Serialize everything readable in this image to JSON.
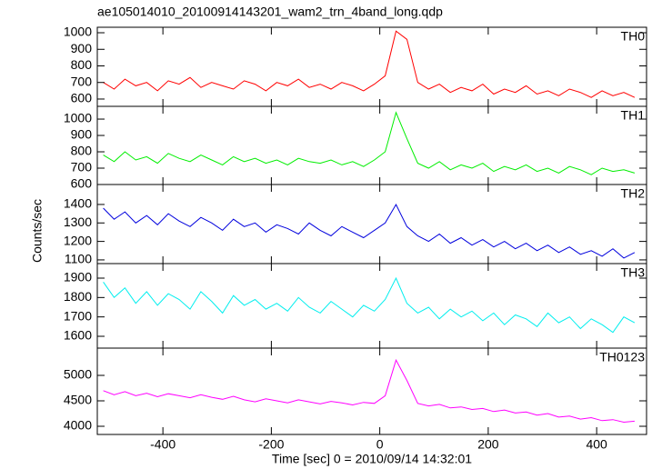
{
  "chart_data": {
    "type": "line",
    "title": "ae105014010_20100914143201_wam2_trn_4band_long.qdp",
    "x_label": "Time [sec] 0 = 2010/09/14 14:32:01",
    "y_label": "Counts/sec",
    "xlim": [
      -521,
      492
    ],
    "xticks": [
      -400,
      -200,
      0,
      200,
      400
    ],
    "x": [
      -510,
      -490,
      -470,
      -450,
      -430,
      -410,
      -390,
      -370,
      -350,
      -330,
      -310,
      -290,
      -270,
      -250,
      -230,
      -210,
      -190,
      -170,
      -150,
      -130,
      -110,
      -90,
      -70,
      -50,
      -30,
      -10,
      10,
      30,
      50,
      70,
      90,
      110,
      130,
      150,
      170,
      190,
      210,
      230,
      250,
      270,
      290,
      310,
      330,
      350,
      370,
      390,
      410,
      430,
      450,
      470
    ],
    "panels": [
      {
        "name": "TH0",
        "color": "#ff0000",
        "ylim": [
          556,
          1033
        ],
        "yticks": [
          600,
          700,
          800,
          900,
          1000
        ],
        "values": [
          700,
          660,
          720,
          680,
          700,
          650,
          710,
          690,
          730,
          670,
          700,
          680,
          660,
          710,
          690,
          650,
          700,
          680,
          720,
          670,
          690,
          660,
          700,
          680,
          650,
          690,
          740,
          1010,
          960,
          700,
          660,
          690,
          640,
          670,
          650,
          690,
          630,
          660,
          640,
          680,
          630,
          650,
          620,
          660,
          640,
          610,
          650,
          620,
          640,
          610
        ]
      },
      {
        "name": "TH1",
        "color": "#00ee00",
        "ylim": [
          600,
          1078
        ],
        "yticks": [
          600,
          700,
          800,
          900,
          1000
        ],
        "values": [
          780,
          740,
          800,
          750,
          770,
          730,
          790,
          760,
          740,
          780,
          750,
          720,
          770,
          740,
          760,
          730,
          750,
          720,
          760,
          740,
          730,
          750,
          720,
          740,
          710,
          750,
          800,
          1040,
          880,
          730,
          700,
          740,
          690,
          720,
          700,
          730,
          680,
          710,
          690,
          720,
          680,
          700,
          670,
          710,
          690,
          660,
          700,
          680,
          690,
          670
        ]
      },
      {
        "name": "TH2",
        "color": "#0000dd",
        "ylim": [
          1080,
          1508
        ],
        "yticks": [
          1100,
          1200,
          1300,
          1400
        ],
        "values": [
          1380,
          1320,
          1360,
          1300,
          1340,
          1290,
          1350,
          1310,
          1280,
          1330,
          1300,
          1260,
          1320,
          1280,
          1300,
          1250,
          1290,
          1270,
          1240,
          1300,
          1260,
          1230,
          1280,
          1250,
          1220,
          1260,
          1300,
          1400,
          1280,
          1230,
          1200,
          1240,
          1190,
          1220,
          1180,
          1210,
          1170,
          1200,
          1160,
          1190,
          1150,
          1180,
          1140,
          1170,
          1130,
          1150,
          1120,
          1160,
          1110,
          1140
        ]
      },
      {
        "name": "TH3",
        "color": "#00eeee",
        "ylim": [
          1539,
          1975
        ],
        "yticks": [
          1600,
          1700,
          1800,
          1900
        ],
        "values": [
          1880,
          1800,
          1850,
          1770,
          1830,
          1760,
          1820,
          1790,
          1740,
          1830,
          1780,
          1720,
          1810,
          1760,
          1790,
          1740,
          1770,
          1730,
          1800,
          1750,
          1720,
          1780,
          1740,
          1700,
          1760,
          1730,
          1790,
          1900,
          1770,
          1720,
          1750,
          1690,
          1740,
          1700,
          1730,
          1680,
          1720,
          1660,
          1710,
          1690,
          1650,
          1720,
          1670,
          1700,
          1640,
          1690,
          1660,
          1620,
          1700,
          1670
        ]
      },
      {
        "name": "TH0123",
        "color": "#ff00ff",
        "ylim": [
          3839,
          5536
        ],
        "yticks": [
          4000,
          4500,
          5000
        ],
        "values": [
          4700,
          4620,
          4680,
          4600,
          4650,
          4580,
          4640,
          4600,
          4560,
          4620,
          4570,
          4530,
          4590,
          4520,
          4480,
          4540,
          4500,
          4460,
          4520,
          4480,
          4440,
          4490,
          4460,
          4420,
          4470,
          4450,
          4600,
          5300,
          4900,
          4450,
          4400,
          4430,
          4360,
          4380,
          4330,
          4350,
          4290,
          4320,
          4260,
          4280,
          4220,
          4250,
          4180,
          4200,
          4140,
          4170,
          4110,
          4130,
          4080,
          4100
        ]
      }
    ]
  }
}
